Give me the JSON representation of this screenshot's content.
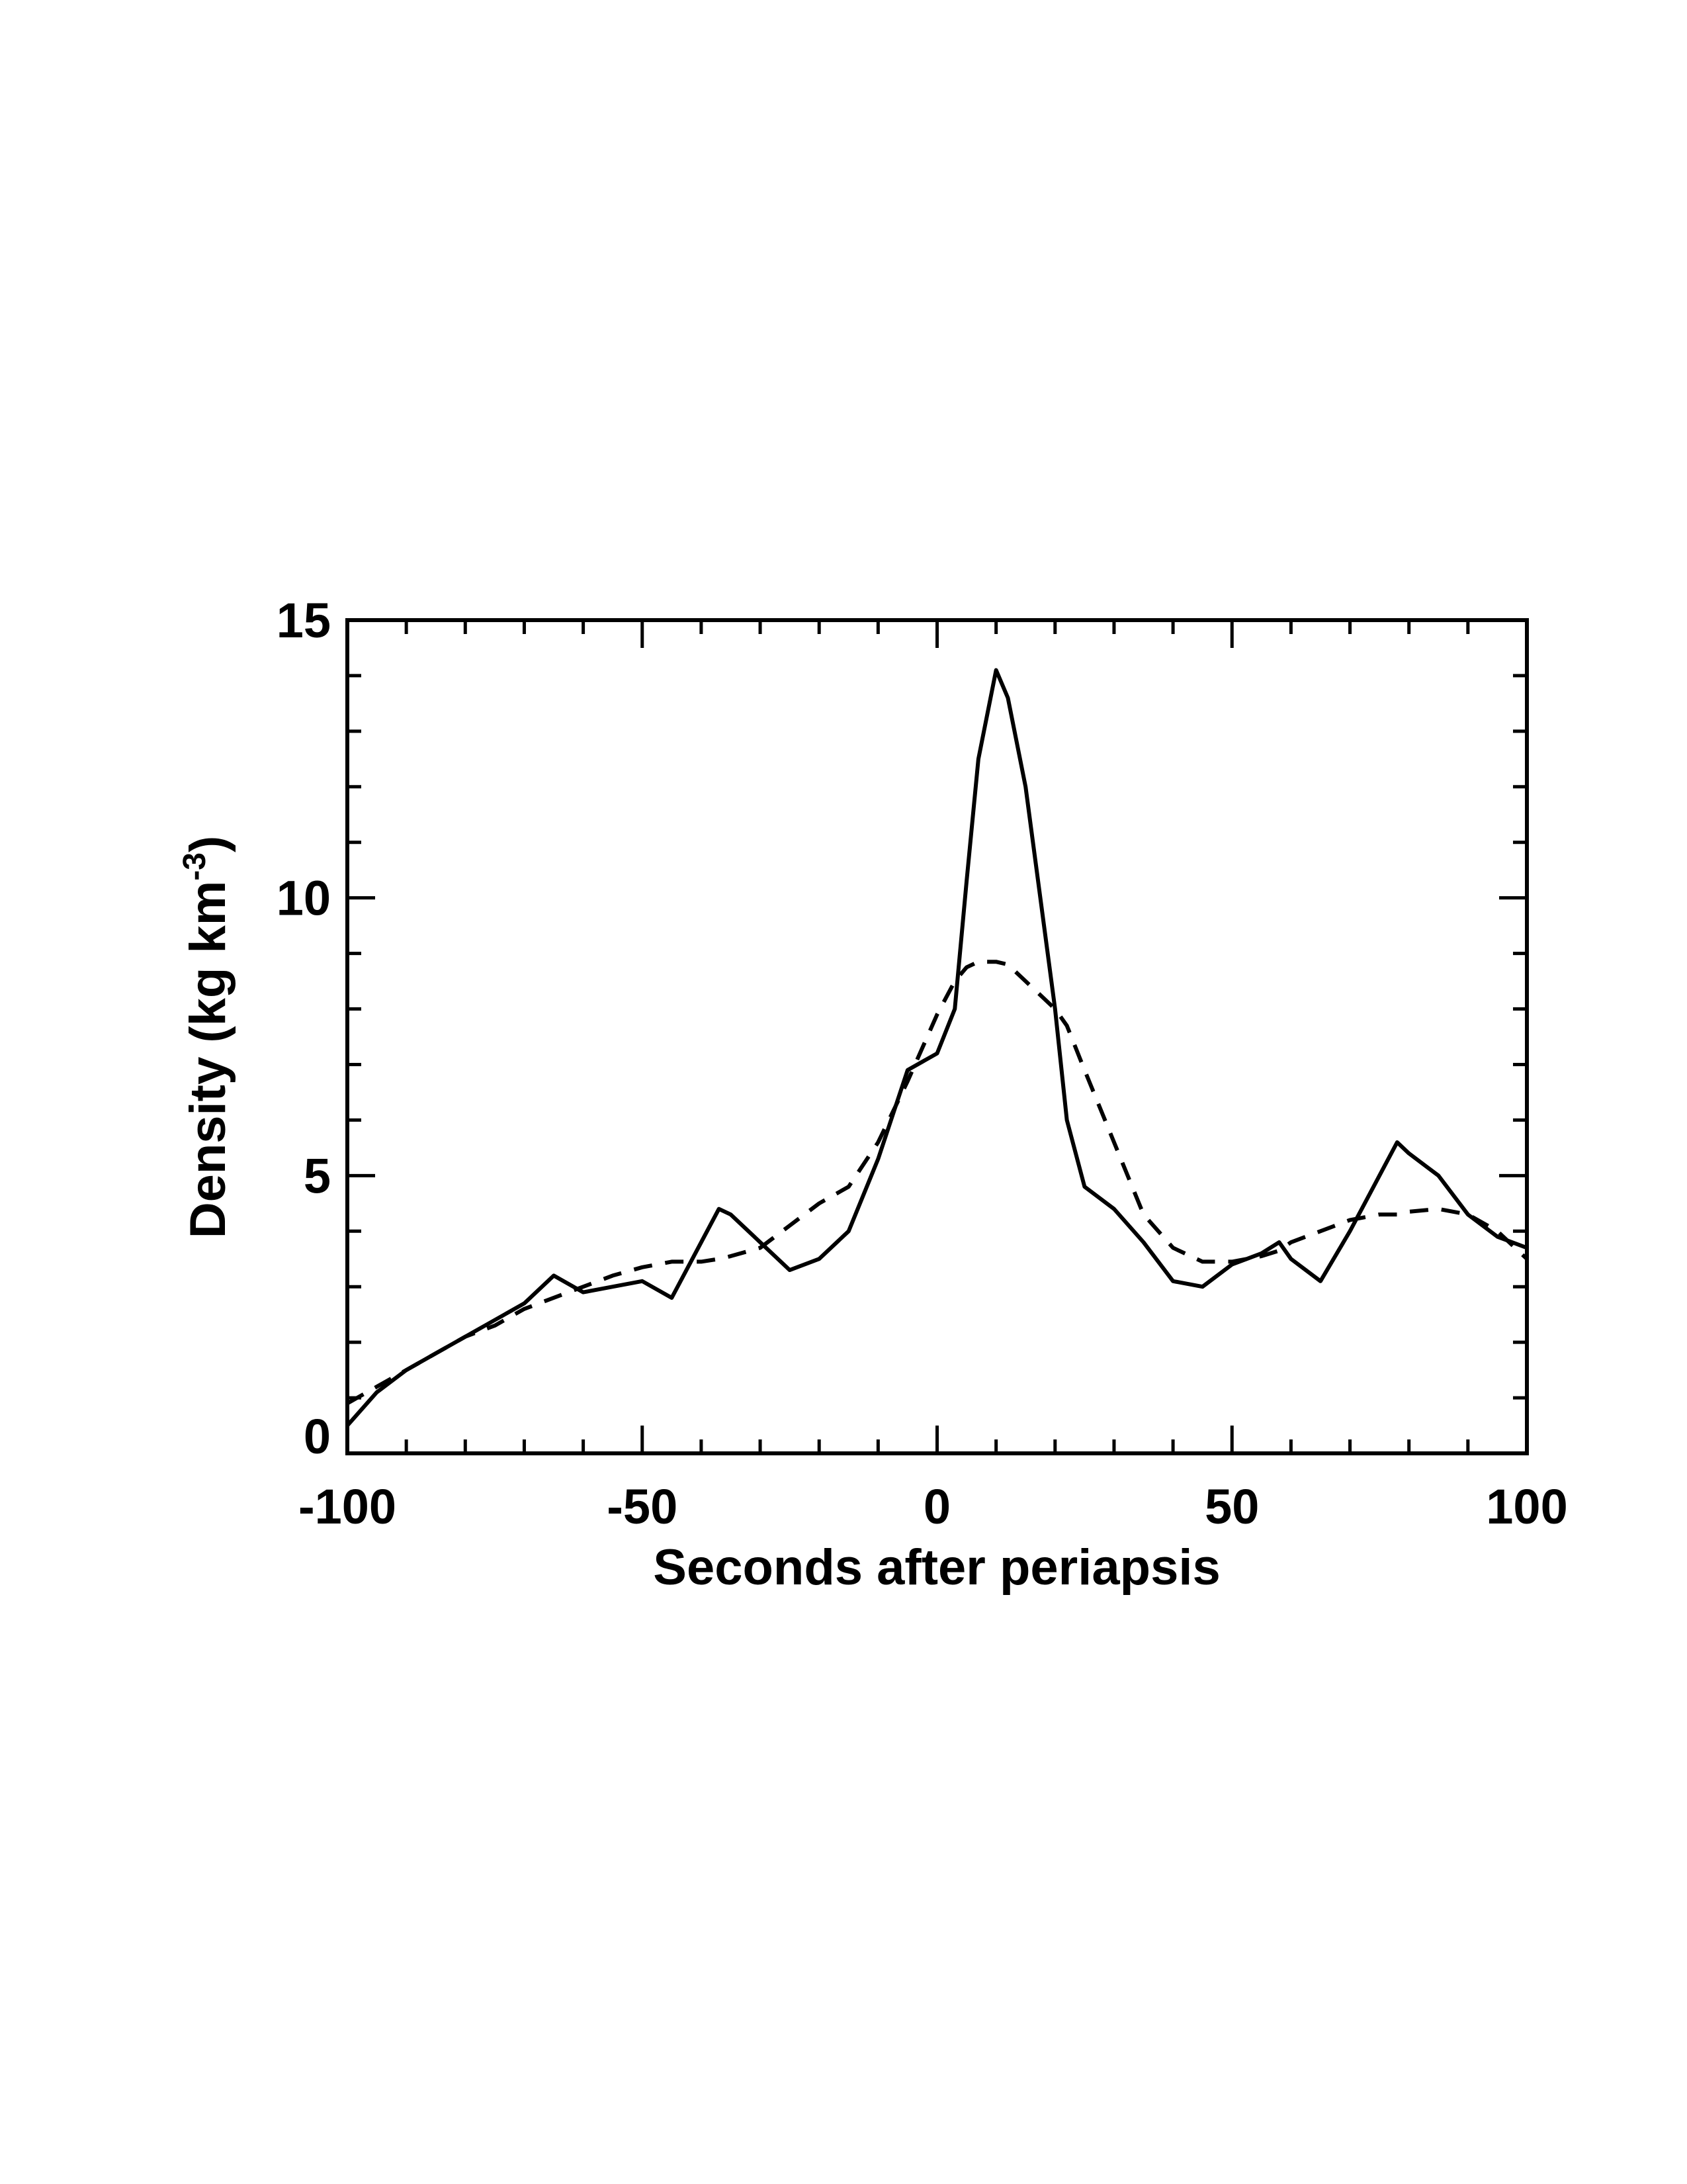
{
  "chart_data": {
    "type": "line",
    "x_label": "Seconds after periapsis",
    "y_label_parts": [
      "Density (kg km",
      "-3",
      ")"
    ],
    "x": [
      -100,
      -95,
      -90,
      -85,
      -80,
      -75,
      -70,
      -65,
      -60,
      -55,
      -50,
      -45,
      -40,
      -37,
      -35,
      -30,
      -25,
      -20,
      -15,
      -10,
      -5,
      0,
      3,
      5,
      7,
      10,
      12,
      15,
      20,
      22,
      25,
      30,
      35,
      40,
      45,
      50,
      55,
      58,
      60,
      65,
      70,
      75,
      78,
      80,
      85,
      90,
      95,
      100
    ],
    "series": [
      {
        "color": "#000000",
        "dash": false,
        "values": [
          0.5,
          1.1,
          1.5,
          1.8,
          2.1,
          2.4,
          2.7,
          3.2,
          2.9,
          3.0,
          3.1,
          2.8,
          3.8,
          4.4,
          4.3,
          3.8,
          3.3,
          3.5,
          4.0,
          5.3,
          6.9,
          7.2,
          8.0,
          10.3,
          12.5,
          14.1,
          13.6,
          12.0,
          8.0,
          6.0,
          4.8,
          4.4,
          3.8,
          3.1,
          3.0,
          3.4,
          3.6,
          3.8,
          3.5,
          3.1,
          4.0,
          5.0,
          5.6,
          5.4,
          5.0,
          4.3,
          3.9,
          3.7
        ]
      },
      {
        "color": "#000000",
        "dash": true,
        "values": [
          0.9,
          1.2,
          1.5,
          1.8,
          2.1,
          2.3,
          2.6,
          2.8,
          3.0,
          3.2,
          3.35,
          3.45,
          3.45,
          3.5,
          3.55,
          3.7,
          4.1,
          4.5,
          4.8,
          5.6,
          6.7,
          7.9,
          8.5,
          8.75,
          8.85,
          8.85,
          8.8,
          8.5,
          8.0,
          7.7,
          6.9,
          5.6,
          4.3,
          3.7,
          3.45,
          3.45,
          3.55,
          3.65,
          3.8,
          4.0,
          4.2,
          4.3,
          4.3,
          4.35,
          4.4,
          4.3,
          4.0,
          3.5
        ]
      }
    ],
    "xlim": [
      -100,
      100
    ],
    "ylim": [
      0,
      15
    ],
    "xticks": [
      -100,
      -50,
      0,
      50,
      100
    ],
    "yticks": [
      0,
      5,
      10,
      15
    ],
    "xticks_minor": [
      -90,
      -80,
      -70,
      -60,
      -40,
      -30,
      -20,
      -10,
      10,
      20,
      30,
      40,
      60,
      70,
      80,
      90
    ],
    "yticks_minor": [
      1,
      2,
      3,
      4,
      6,
      7,
      8,
      9,
      11,
      12,
      13,
      14
    ],
    "grid": false
  }
}
